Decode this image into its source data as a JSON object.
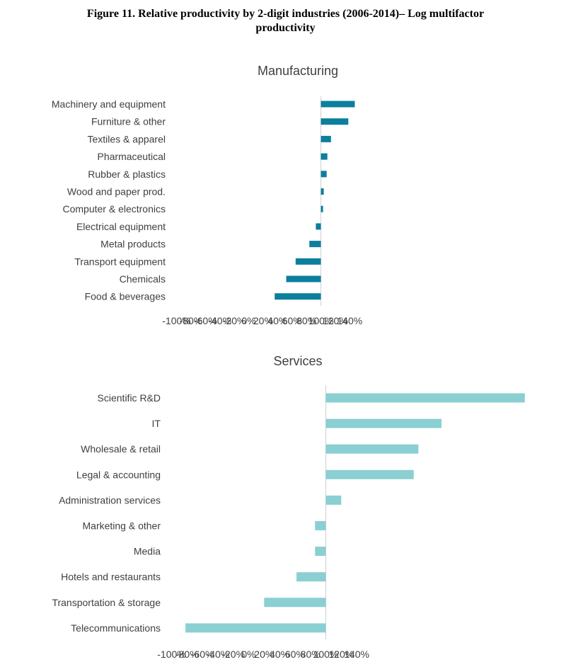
{
  "figure": {
    "title_line1": "Figure 11. Relative productivity by 2-digit industries (2006-2014)– Log multifactor",
    "title_line2": "productivity"
  },
  "chart_data": [
    {
      "type": "bar",
      "orientation": "horizontal",
      "title": "Manufacturing",
      "color": "#0B7F9C",
      "categories": [
        "Machinery and equipment",
        "Furniture & other",
        "Textiles & apparel",
        "Pharmaceutical",
        "Rubber & plastics",
        "Wood and paper prod.",
        "Computer & electronics",
        "Electrical equipment",
        "Metal products",
        "Transport equipment",
        "Chemicals",
        "Food & beverages"
      ],
      "values": [
        47,
        38,
        14,
        9,
        8,
        4,
        3,
        -7,
        -16,
        -35,
        -48,
        -64
      ],
      "xlim": [
        -100,
        140
      ],
      "xticks": [
        "-100%",
        "-80%",
        "-60%",
        "-40%",
        "-20%",
        "0%",
        "20%",
        "40%",
        "60%",
        "80%",
        "100%",
        "120%",
        "140%"
      ]
    },
    {
      "type": "bar",
      "orientation": "horizontal",
      "title": "Services",
      "color": "#8ACFD2",
      "categories": [
        "Scientific R&D",
        "IT",
        "Wholesale & retail",
        "Legal & accounting",
        "Administration services",
        "Marketing & other",
        "Media",
        "Hotels and restaurants",
        "Transportation & storage",
        "Telecommunications"
      ],
      "values": [
        129,
        75,
        60,
        57,
        10,
        -7,
        -7,
        -19,
        -40,
        -91
      ],
      "xlim": [
        -100,
        140
      ],
      "xticks": [
        "-100%",
        "-80%",
        "-60%",
        "-40%",
        "-20%",
        "0%",
        "20%",
        "40%",
        "60%",
        "80%",
        "100%",
        "120%",
        "140%"
      ]
    }
  ]
}
